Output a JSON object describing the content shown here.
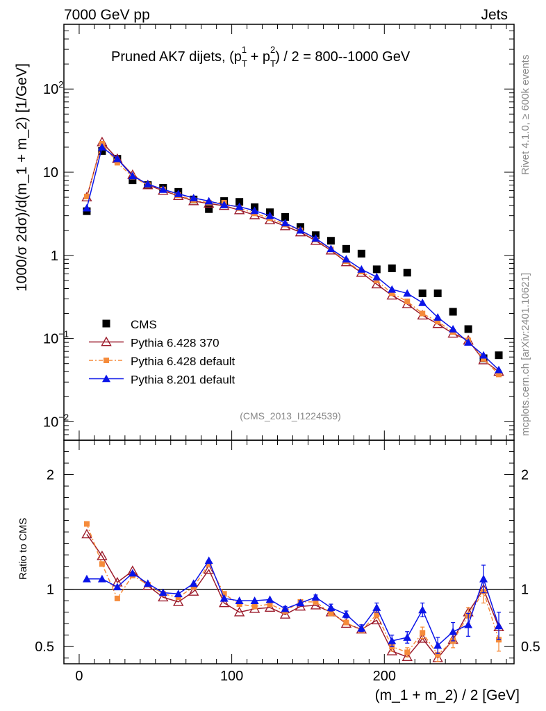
{
  "header": {
    "left": "7000 GeV pp",
    "right": "Jets"
  },
  "side_labels": {
    "rivet": "Rivet 4.1.0, ≥ 600k events",
    "ref": "mcplots.cern.ch [arXiv:2401.10621]"
  },
  "watermark": "(CMS_2013_I1224539)",
  "chart_data": {
    "type": "scatter",
    "title_parts": {
      "prefix": "Pruned AK7 dijets, (p",
      "sub1": "T",
      "sup1": "1",
      "mid": " + p",
      "sub2": "T",
      "sup2": "2",
      "suffix": ") / 2 = 800--1000 GeV"
    },
    "xlabel": "(m_1 + m_2) / 2 [GeV]",
    "ylabel_main": "1000/σ   2dσ)/d(m_1 + m_2) [1/GeV]",
    "ylabel_ratio": "Ratio to CMS",
    "xlim": [
      -10,
      285
    ],
    "ylim_main": [
      0.006,
      600
    ],
    "ylim_ratio": [
      0.35,
      2.3
    ],
    "x_ticks": [
      {
        "value": 0,
        "label": "0"
      },
      {
        "value": 100,
        "label": "100"
      },
      {
        "value": 200,
        "label": "200"
      }
    ],
    "y_ticks_main": [
      {
        "value": 0.01,
        "base": "10",
        "exp": "−2"
      },
      {
        "value": 0.1,
        "base": "10",
        "exp": "−1"
      },
      {
        "value": 1,
        "base": "1",
        "exp": ""
      },
      {
        "value": 10,
        "base": "10",
        "exp": ""
      },
      {
        "value": 100,
        "base": "10",
        "exp": "2"
      }
    ],
    "y_ticks_ratio": [
      {
        "value": 0.5,
        "label": "0.5"
      },
      {
        "value": 1,
        "label": "1"
      },
      {
        "value": 2,
        "label": "2"
      }
    ],
    "x": [
      5,
      15,
      25,
      35,
      45,
      55,
      65,
      75,
      85,
      95,
      105,
      115,
      125,
      135,
      145,
      155,
      165,
      175,
      185,
      195,
      205,
      215,
      225,
      235,
      245,
      255,
      265,
      275
    ],
    "series": [
      {
        "name": "CMS",
        "marker": "filled-square",
        "color": "#000000",
        "line": "none",
        "values": [
          3.4,
          18,
          14.5,
          8,
          7,
          6.5,
          5.8,
          4.7,
          3.6,
          4.5,
          4.4,
          3.8,
          3.3,
          2.9,
          2.2,
          1.75,
          1.5,
          1.2,
          1.05,
          0.68,
          0.7,
          0.62,
          0.35,
          0.35,
          0.21,
          0.13,
          0.058,
          0.063
        ],
        "ratio": []
      },
      {
        "name": "Pythia 6.428 370",
        "marker": "open-triangle",
        "color": "#9c1c2c",
        "line": "solid",
        "values": [
          5.0,
          23,
          14.5,
          9.3,
          7.0,
          6.0,
          5.2,
          4.5,
          4.2,
          3.95,
          3.5,
          3.05,
          2.65,
          2.25,
          1.9,
          1.5,
          1.15,
          0.83,
          0.62,
          0.45,
          0.33,
          0.26,
          0.19,
          0.15,
          0.115,
          0.095,
          0.055,
          0.04
        ],
        "ratio": [
          1.48,
          1.29,
          1.06,
          1.16,
          1.03,
          0.93,
          0.89,
          0.98,
          1.17,
          0.88,
          0.8,
          0.83,
          0.84,
          0.78,
          0.85,
          0.86,
          0.8,
          0.7,
          0.65,
          0.73,
          0.46,
          0.41,
          0.57,
          0.4,
          0.56,
          0.8,
          1.0,
          0.67
        ]
      },
      {
        "name": "Pythia 6.428 default",
        "marker": "filled-square-small",
        "color": "#f58b3b",
        "line": "dashdot",
        "values": [
          5.1,
          22,
          13,
          8.8,
          7.0,
          6.2,
          5.3,
          4.6,
          4.3,
          4.3,
          3.7,
          3.2,
          2.8,
          2.35,
          2.0,
          1.55,
          1.18,
          0.85,
          0.64,
          0.5,
          0.35,
          0.28,
          0.2,
          0.16,
          0.12,
          0.095,
          0.057,
          0.037
        ],
        "ratio": [
          1.57,
          1.22,
          0.92,
          1.12,
          1.04,
          0.96,
          0.93,
          1.02,
          1.22,
          0.96,
          0.87,
          0.85,
          0.87,
          0.81,
          0.89,
          0.89,
          0.79,
          0.71,
          0.64,
          0.78,
          0.5,
          0.45,
          0.62,
          0.43,
          0.55,
          0.77,
          0.98,
          0.56
        ],
        "ratio_err": [
          0.01,
          0.01,
          0.01,
          0.01,
          0.01,
          0.01,
          0.01,
          0.01,
          0.01,
          0.01,
          0.01,
          0.01,
          0.01,
          0.01,
          0.01,
          0.01,
          0.02,
          0.02,
          0.02,
          0.03,
          0.04,
          0.04,
          0.05,
          0.06,
          0.06,
          0.07,
          0.1,
          0.1
        ]
      },
      {
        "name": "Pythia 8.201 default",
        "marker": "filled-triangle",
        "color": "#0a14e8",
        "line": "solid",
        "values": [
          3.7,
          20,
          14.5,
          9.0,
          7.2,
          6.2,
          5.5,
          4.9,
          4.5,
          4.05,
          3.85,
          3.45,
          3.0,
          2.45,
          2.0,
          1.6,
          1.2,
          0.9,
          0.68,
          0.55,
          0.39,
          0.35,
          0.27,
          0.18,
          0.13,
          0.09,
          0.063,
          0.042
        ],
        "ratio": [
          1.09,
          1.09,
          1.02,
          1.14,
          1.05,
          0.97,
          0.96,
          1.05,
          1.25,
          0.92,
          0.9,
          0.9,
          0.91,
          0.83,
          0.88,
          0.93,
          0.84,
          0.78,
          0.66,
          0.84,
          0.55,
          0.58,
          0.82,
          0.51,
          0.63,
          0.69,
          1.09,
          0.68
        ],
        "ratio_err": [
          0.01,
          0.01,
          0.01,
          0.01,
          0.01,
          0.01,
          0.01,
          0.01,
          0.01,
          0.01,
          0.01,
          0.01,
          0.01,
          0.02,
          0.02,
          0.02,
          0.03,
          0.03,
          0.03,
          0.04,
          0.05,
          0.05,
          0.06,
          0.07,
          0.08,
          0.1,
          0.12,
          0.12
        ]
      }
    ]
  }
}
